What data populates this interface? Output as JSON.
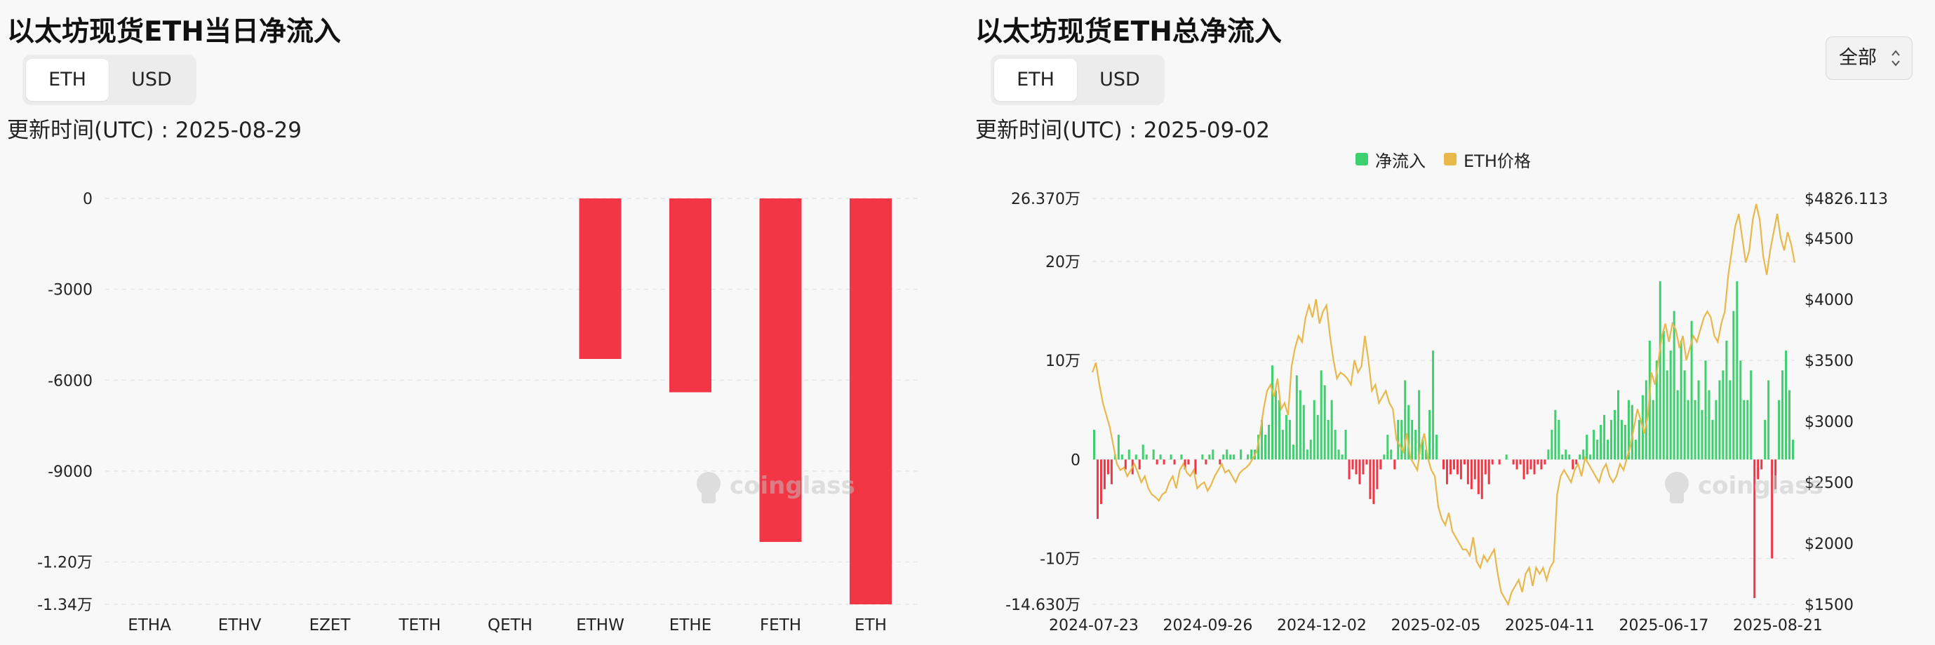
{
  "left": {
    "title": "以太坊现货ETH当日净流入",
    "toggle": {
      "eth": "ETH",
      "usd": "USD"
    },
    "updated": "更新时间(UTC) : 2025-08-29",
    "watermark": "coinglass"
  },
  "right": {
    "title": "以太坊现货ETH总净流入",
    "toggle": {
      "eth": "ETH",
      "usd": "USD"
    },
    "updated": "更新时间(UTC) : 2025-09-02",
    "range": "全部",
    "legend": {
      "net": "净流入",
      "price": "ETH价格"
    },
    "watermark": "coinglass"
  },
  "colors": {
    "negative": "#f23645",
    "positive": "#3ecf6e",
    "price": "#e8b84b",
    "grid": "#e6e6e6"
  },
  "chart_data": [
    {
      "type": "bar",
      "title": "以太坊现货ETH当日净流入",
      "categories": [
        "ETHA",
        "ETHV",
        "EZET",
        "TETH",
        "QETH",
        "ETHW",
        "ETHE",
        "FETH",
        "ETH"
      ],
      "values": [
        0,
        0,
        0,
        0,
        0,
        -5300,
        -6400,
        -11340,
        -13400
      ],
      "ylim": [
        -13400,
        0
      ],
      "yticks": [
        {
          "value": 0,
          "label": "0"
        },
        {
          "value": -3000,
          "label": "-3000"
        },
        {
          "value": -6000,
          "label": "-6000"
        },
        {
          "value": -9000,
          "label": "-9000"
        },
        {
          "value": -12000,
          "label": "-1.20万"
        },
        {
          "value": -13400,
          "label": "-1.34万"
        }
      ],
      "grid": true
    },
    {
      "type": "bar",
      "title": "以太坊现货ETH总净流入",
      "series": [
        {
          "name": "净流入",
          "kind": "bar",
          "axis": "left"
        },
        {
          "name": "ETH价格",
          "kind": "line",
          "axis": "right"
        }
      ],
      "ylim_left": [
        -146300,
        263700
      ],
      "ylim_right": [
        1500,
        4826.113
      ],
      "left_ticks": [
        {
          "value": 263700,
          "label": "26.370万"
        },
        {
          "value": 200000,
          "label": "20万"
        },
        {
          "value": 100000,
          "label": "10万"
        },
        {
          "value": 0,
          "label": "0"
        },
        {
          "value": -100000,
          "label": "-10万"
        },
        {
          "value": -146300,
          "label": "-14.630万"
        }
      ],
      "right_ticks": [
        {
          "value": 4826.113,
          "label": "$4826.113"
        },
        {
          "value": 4500,
          "label": "$4500"
        },
        {
          "value": 4000,
          "label": "$4000"
        },
        {
          "value": 3500,
          "label": "$3500"
        },
        {
          "value": 3000,
          "label": "$3000"
        },
        {
          "value": 2500,
          "label": "$2500"
        },
        {
          "value": 2000,
          "label": "$2000"
        },
        {
          "value": 1500,
          "label": "$1500"
        }
      ],
      "x_ticks": [
        "2024-07-23",
        "2024-09-26",
        "2024-12-02",
        "2025-02-05",
        "2025-04-11",
        "2025-06-17",
        "2025-08-21"
      ],
      "net_flow_daily": [
        30000,
        -60000,
        -45000,
        -30000,
        -15000,
        -25000,
        5000,
        25000,
        5000,
        -10000,
        10000,
        -15000,
        5000,
        -10000,
        15000,
        5000,
        0,
        10000,
        -5000,
        5000,
        -5000,
        0,
        5000,
        -5000,
        0,
        5000,
        -10000,
        -5000,
        0,
        -15000,
        0,
        5000,
        -5000,
        5000,
        10000,
        0,
        -5000,
        5000,
        10000,
        5000,
        5000,
        0,
        10000,
        0,
        5000,
        10000,
        10000,
        25000,
        40000,
        25000,
        35000,
        95000,
        70000,
        60000,
        30000,
        45000,
        40000,
        15000,
        85000,
        70000,
        55000,
        10000,
        20000,
        60000,
        45000,
        90000,
        75000,
        40000,
        60000,
        30000,
        10000,
        5000,
        30000,
        -20000,
        -10000,
        -15000,
        -25000,
        -15000,
        -5000,
        -40000,
        -45000,
        -30000,
        -10000,
        5000,
        25000,
        10000,
        -10000,
        40000,
        40000,
        80000,
        55000,
        40000,
        30000,
        70000,
        20000,
        10000,
        50000,
        110000,
        25000,
        0,
        -10000,
        -25000,
        -15000,
        -10000,
        -15000,
        -20000,
        -5000,
        -25000,
        -30000,
        -20000,
        -35000,
        -40000,
        -15000,
        -25000,
        -5000,
        0,
        -5000,
        0,
        5000,
        0,
        -5000,
        -10000,
        -5000,
        -20000,
        -15000,
        -10000,
        -15000,
        -5000,
        -10000,
        -5000,
        10000,
        30000,
        50000,
        40000,
        5000,
        10000,
        5000,
        -10000,
        -5000,
        5000,
        10000,
        25000,
        5000,
        30000,
        20000,
        35000,
        45000,
        20000,
        40000,
        50000,
        70000,
        40000,
        35000,
        60000,
        55000,
        20000,
        40000,
        65000,
        80000,
        120000,
        60000,
        100000,
        180000,
        130000,
        90000,
        110000,
        150000,
        70000,
        120000,
        90000,
        60000,
        140000,
        60000,
        80000,
        50000,
        100000,
        70000,
        40000,
        60000,
        80000,
        90000,
        120000,
        80000,
        150000,
        180000,
        100000,
        60000,
        60000,
        90000,
        -140000,
        -20000,
        -10000,
        40000,
        80000,
        -100000,
        -30000,
        60000,
        90000,
        110000,
        70000,
        20000
      ],
      "eth_price_daily": [
        3400,
        3480,
        3300,
        3150,
        3050,
        2950,
        2800,
        2650,
        2600,
        2620,
        2550,
        2600,
        2650,
        2580,
        2500,
        2550,
        2450,
        2400,
        2380,
        2350,
        2400,
        2420,
        2500,
        2550,
        2450,
        2600,
        2650,
        2580,
        2550,
        2600,
        2450,
        2480,
        2500,
        2430,
        2480,
        2550,
        2600,
        2650,
        2580,
        2600,
        2550,
        2500,
        2570,
        2600,
        2620,
        2650,
        2700,
        2750,
        2900,
        3100,
        3250,
        3300,
        3200,
        3350,
        3100,
        3150,
        3050,
        3450,
        3600,
        3700,
        3650,
        3850,
        3950,
        3850,
        4000,
        3800,
        3900,
        3950,
        3700,
        3500,
        3350,
        3400,
        3380,
        3350,
        3300,
        3500,
        3400,
        3450,
        3700,
        3500,
        3250,
        3300,
        3150,
        3200,
        3250,
        3150,
        3100,
        2850,
        2800,
        2750,
        2900,
        2700,
        2650,
        2600,
        2800,
        2900,
        2700,
        2600,
        2550,
        2300,
        2200,
        2150,
        2250,
        2100,
        2050,
        2000,
        1950,
        1950,
        1900,
        2050,
        1850,
        1800,
        1900,
        1850,
        1900,
        1950,
        1750,
        1600,
        1550,
        1500,
        1600,
        1650,
        1700,
        1600,
        1750,
        1800,
        1650,
        1800,
        1750,
        1800,
        1700,
        1800,
        1850,
        2400,
        2550,
        2600,
        2550,
        2500,
        2600,
        2650,
        2550,
        2700,
        2650,
        2600,
        2550,
        2500,
        2600,
        2650,
        2550,
        2500,
        2550,
        2650,
        2600,
        2700,
        2800,
        2950,
        3100,
        3000,
        2900,
        3050,
        3400,
        3300,
        3500,
        3700,
        3800,
        3650,
        3800,
        3750,
        3600,
        3700,
        3500,
        3600,
        3700,
        3650,
        3750,
        3850,
        3900,
        3850,
        3700,
        3650,
        3800,
        3900,
        4200,
        4400,
        4600,
        4700,
        4500,
        4300,
        4400,
        4650,
        4780,
        4650,
        4350,
        4200,
        4400,
        4550,
        4700,
        4500,
        4400,
        4550,
        4450,
        4300
      ],
      "watermark_note": "coinglass"
    }
  ]
}
